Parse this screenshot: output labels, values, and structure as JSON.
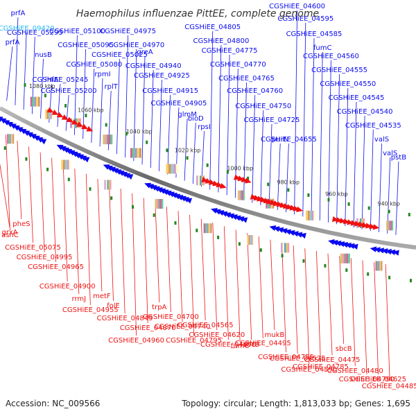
{
  "title": "Haemophilus influenzae PittEE, complete genome",
  "footer": {
    "accession": "Accession: NC_009566",
    "summary": "Topology: circular; Length: 1,813,033 bp; Genes: 1,695"
  },
  "colors": {
    "forward": "#0a0af0",
    "reverse": "#ee1111",
    "highlight": "#22bbee",
    "backbone": "#888888"
  },
  "kbp_ticks": [
    "1080 kbp",
    "1060 kbp",
    "1040 kbp",
    "1020 kbp",
    "1000 kbp",
    "980 kbp",
    "960 kbp",
    "940 kbp"
  ],
  "forward_labels": [
    "prfA",
    "prfA",
    "CGSHiEE_09420",
    "CGSHiEE_05295",
    "nusB",
    "ihfA",
    "CGSHiEE_05245",
    "CGSHiEE_05200",
    "CGSHiEE_05100",
    "CGSHiEE_05095",
    "CGSHiEE_05080",
    "rpmI",
    "rplT",
    "CGSHiEE_05025",
    "CGSHiEE_04975",
    "CGSHiEE_04970",
    "greA",
    "CGSHiEE_04940",
    "CGSHiEE_04925",
    "CGSHiEE_04915",
    "CGSHiEE_04905",
    "glmM",
    "bioD",
    "rpsI",
    "CGSHiEE_04805",
    "CGSHiEE_04800",
    "CGSHiEE_04775",
    "CGSHiEE_04770",
    "CGSHiEE_04765",
    "CGSHiEE_04760",
    "CGSHiEE_04750",
    "CGSHiEE_04725",
    "purN",
    "CGSHiEE_04655",
    "CGSHiEE_04600",
    "CGSHiEE_04595",
    "CGSHiEE_04585",
    "fumC",
    "CGSHiEE_04560",
    "CGSHiEE_04555",
    "CGSHiEE_04550",
    "CGSHiEE_04545",
    "CGSHiEE_04540",
    "CGSHiEE_04535",
    "valS",
    "valS",
    "pstB"
  ],
  "reverse_labels": [
    "grxA",
    "asnC",
    "pheS",
    "CGSHiEE_05075",
    "CGSHiEE_04995",
    "CGSHiEE_04965",
    "CGSHiEE_04900",
    "rrmJ",
    "CGSHiEE_04955",
    "metF",
    "folE",
    "CGSHiEE_04845",
    "CGSHiEE_04960",
    "CGSHiEE_04870",
    "trpA",
    "CGSHiEE_04700",
    "CGSHiEE_04740",
    "CGSHiEE_04795",
    "CGSHiEE_04565",
    "CGSHiEE_04620",
    "CGSHiEE_04670",
    "fumC",
    "sbcB",
    "CGSHiEE_04495",
    "mukB",
    "CGSHiEE_04755",
    "CGSHiEE_04575",
    "CGSHiEE_04590",
    "CGSHiEE_04785",
    "CGSHiEE_04475",
    "sbcB",
    "CGSHiEE_04480",
    "CGSHiEE_04790",
    "CGSHiEE_04625",
    "CGSHiEE_04485"
  ]
}
